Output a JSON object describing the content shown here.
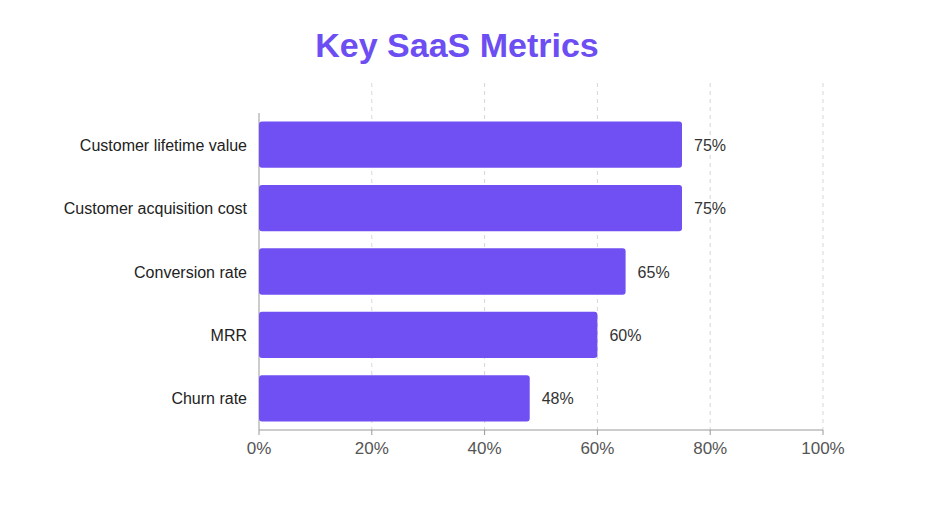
{
  "chart_data": {
    "type": "bar",
    "title": "Key SaaS Metrics",
    "orientation": "horizontal",
    "categories": [
      "Customer lifetime value",
      "Customer acquisition cost",
      "Conversion rate",
      "MRR",
      "Churn rate"
    ],
    "values": [
      75,
      75,
      65,
      60,
      48
    ],
    "value_labels": [
      "75%",
      "75%",
      "65%",
      "60%",
      "48%"
    ],
    "color": "#7050f2",
    "xlim": [
      0,
      100
    ],
    "xticks": [
      {
        "value": 0,
        "label": "0%"
      },
      {
        "value": 20,
        "label": "20%"
      },
      {
        "value": 40,
        "label": "40%"
      },
      {
        "value": 60,
        "label": "60%"
      },
      {
        "value": 80,
        "label": "80%"
      },
      {
        "value": 100,
        "label": "100%"
      }
    ],
    "grid": true,
    "data_labels": true
  }
}
